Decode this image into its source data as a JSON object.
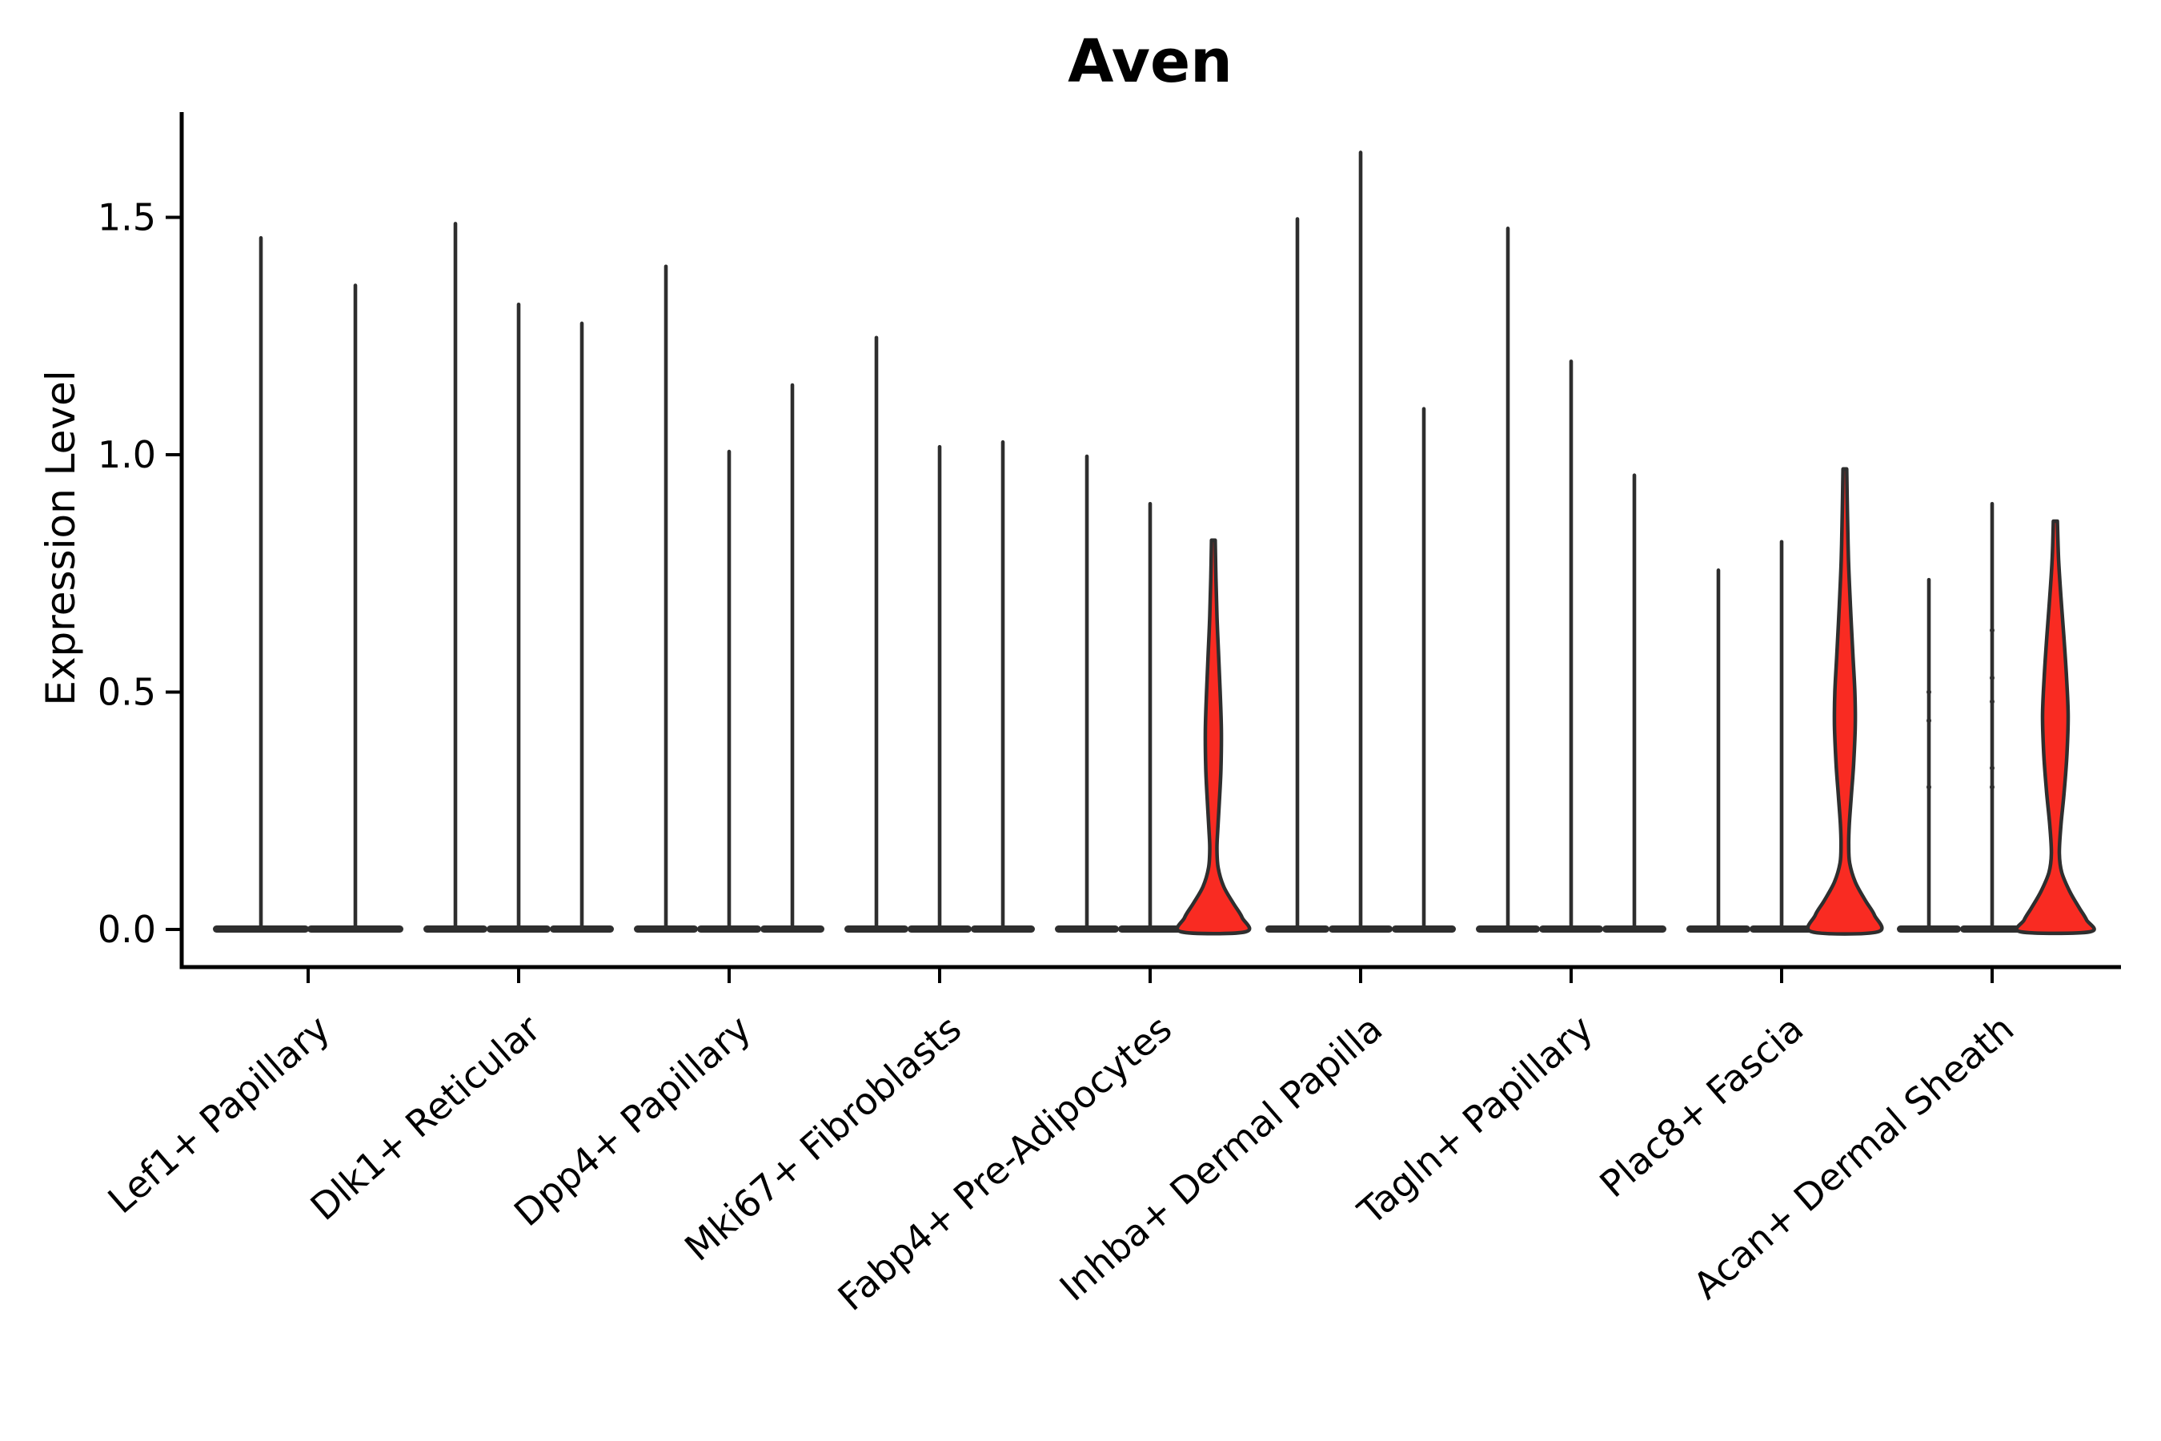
{
  "chart_data": {
    "type": "violin",
    "title": "Aven",
    "ylabel": "Expression Level",
    "xlabel": "",
    "ylim": [
      -0.08,
      1.72
    ],
    "yticks": [
      0.0,
      0.5,
      1.0,
      1.5
    ],
    "ytick_labels": [
      "0.0",
      "0.5",
      "1.0",
      "1.5"
    ],
    "grid": false,
    "legend": "none",
    "colors": {
      "axis": "#000000",
      "violin_edge": "#2e2e2e",
      "highlight_fill": "#f92b22",
      "background": "#ffffff"
    },
    "categories": [
      "Lef1+ Papillary",
      "Dlk1+ Reticular",
      "Dpp4+ Papillary",
      "Mki67+ Fibroblasts",
      "Fabp4+ Pre-Adipocytes",
      "Inhba+ Dermal Papilla",
      "Tagln+ Papillary",
      "Plac8+ Fascia",
      "Acan+ Dermal Sheath"
    ],
    "groups": [
      {
        "label": "Lef1+ Papillary",
        "violins": [
          {
            "max": 1.46,
            "fill": "none"
          },
          {
            "max": 1.36,
            "fill": "none"
          }
        ]
      },
      {
        "label": "Dlk1+ Reticular",
        "violins": [
          {
            "max": 1.49,
            "fill": "none"
          },
          {
            "max": 1.32,
            "fill": "none"
          },
          {
            "max": 1.28,
            "fill": "none"
          }
        ]
      },
      {
        "label": "Dpp4+ Papillary",
        "violins": [
          {
            "max": 1.4,
            "fill": "none"
          },
          {
            "max": 1.01,
            "fill": "none"
          },
          {
            "max": 1.15,
            "fill": "none"
          }
        ]
      },
      {
        "label": "Mki67+ Fibroblasts",
        "violins": [
          {
            "max": 1.25,
            "fill": "none"
          },
          {
            "max": 1.02,
            "fill": "none"
          },
          {
            "max": 1.03,
            "fill": "none"
          }
        ]
      },
      {
        "label": "Fabp4+ Pre-Adipocytes",
        "violins": [
          {
            "max": 1.0,
            "fill": "none"
          },
          {
            "max": 0.9,
            "fill": "none"
          },
          {
            "max": 0.82,
            "fill": "red",
            "profile": [
              [
                0.82,
                2.3
              ],
              [
                0.74,
                3.2
              ],
              [
                0.66,
                4.5
              ],
              [
                0.58,
                6.5
              ],
              [
                0.5,
                8.5
              ],
              [
                0.42,
                10
              ],
              [
                0.34,
                9.5
              ],
              [
                0.27,
                7.5
              ],
              [
                0.21,
                5.5
              ],
              [
                0.17,
                4.5
              ],
              [
                0.13,
                6
              ],
              [
                0.09,
                13
              ],
              [
                0.055,
                25
              ],
              [
                0.025,
                36
              ],
              [
                0.0,
                40
              ]
            ]
          }
        ]
      },
      {
        "label": "Inhba+ Dermal Papilla",
        "violins": [
          {
            "max": 1.5,
            "fill": "none"
          },
          {
            "max": 1.64,
            "fill": "none"
          },
          {
            "max": 1.1,
            "fill": "none"
          }
        ]
      },
      {
        "label": "Tagln+ Papillary",
        "violins": [
          {
            "max": 1.48,
            "fill": "none"
          },
          {
            "max": 1.2,
            "fill": "none"
          },
          {
            "max": 0.96,
            "fill": "none"
          }
        ]
      },
      {
        "label": "Plac8+ Fascia",
        "violins": [
          {
            "max": 0.76,
            "fill": "none"
          },
          {
            "max": 0.82,
            "fill": "none"
          },
          {
            "max": 0.97,
            "fill": "red",
            "profile": [
              [
                0.97,
                2.3
              ],
              [
                0.88,
                3.2
              ],
              [
                0.78,
                4.5
              ],
              [
                0.68,
                7
              ],
              [
                0.58,
                10
              ],
              [
                0.5,
                12.5
              ],
              [
                0.43,
                13
              ],
              [
                0.35,
                11
              ],
              [
                0.28,
                8
              ],
              [
                0.22,
                5.5
              ],
              [
                0.18,
                4.8
              ],
              [
                0.14,
                6
              ],
              [
                0.1,
                13
              ],
              [
                0.06,
                26
              ],
              [
                0.03,
                37
              ],
              [
                0.0,
                41
              ]
            ]
          }
        ]
      },
      {
        "label": "Acan+ Dermal Sheath",
        "violins": [
          {
            "max": 0.74,
            "fill": "none",
            "dots": [
              0.5,
              0.44,
              0.3
            ]
          },
          {
            "max": 0.9,
            "fill": "none",
            "dots": [
              0.63,
              0.53,
              0.48,
              0.34,
              0.3
            ]
          },
          {
            "max": 0.86,
            "fill": "red",
            "profile": [
              [
                0.86,
                2.5
              ],
              [
                0.78,
                4
              ],
              [
                0.7,
                7
              ],
              [
                0.62,
                10.5
              ],
              [
                0.53,
                14
              ],
              [
                0.45,
                16
              ],
              [
                0.37,
                14.5
              ],
              [
                0.29,
                11
              ],
              [
                0.22,
                7
              ],
              [
                0.16,
                5
              ],
              [
                0.12,
                8
              ],
              [
                0.08,
                18
              ],
              [
                0.045,
                30
              ],
              [
                0.02,
                39
              ],
              [
                0.0,
                43
              ]
            ]
          }
        ]
      }
    ]
  }
}
